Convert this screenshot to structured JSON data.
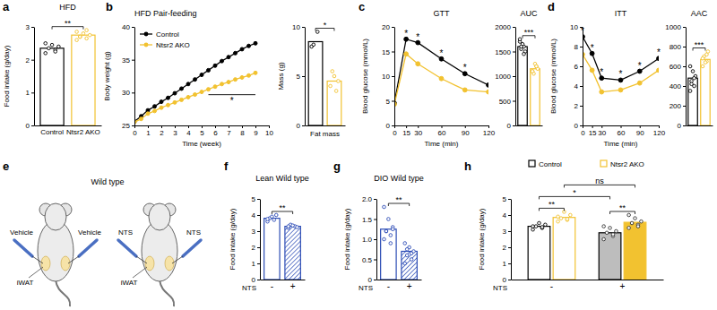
{
  "chart_data": [
    {
      "type": "bar",
      "label": "a",
      "title": "HFD",
      "categories": [
        "Control",
        "Ntsr2 AKO"
      ],
      "values": [
        2.35,
        2.75
      ],
      "points": [
        [
          2.2,
          2.3,
          2.35,
          2.4,
          2.45,
          2.5,
          2.25
        ],
        [
          2.6,
          2.65,
          2.7,
          2.75,
          2.8,
          2.85,
          2.9,
          2.7
        ]
      ],
      "colors": [
        "#000000",
        "#f2c230"
      ],
      "y_label": "Food intake (g/day)",
      "ylim": [
        0,
        3
      ],
      "yticks": [
        0,
        1,
        2,
        3
      ],
      "annotations": [
        {
          "text": "**",
          "bars": [
            0,
            1
          ]
        }
      ]
    },
    {
      "type": "line",
      "label": "b",
      "title": "HFD Pair-feeding",
      "x": [
        0,
        0.5,
        1,
        1.5,
        2,
        2.5,
        3,
        3.5,
        4,
        4.5,
        5,
        5.5,
        6,
        6.5,
        7,
        7.5,
        8,
        8.5,
        9
      ],
      "series": [
        {
          "name": "Control",
          "color": "#000000",
          "marker": "circle",
          "values": [
            25.6,
            26.4,
            27.3,
            27.9,
            28.6,
            29.2,
            29.9,
            30.6,
            31.3,
            32.0,
            32.7,
            33.4,
            34.1,
            34.8,
            35.4,
            36.0,
            36.6,
            37.1,
            37.5
          ]
        },
        {
          "name": "Ntsr2 AKO",
          "color": "#f2c230",
          "marker": "circle",
          "values": [
            25.5,
            26.0,
            26.8,
            27.2,
            27.7,
            28.1,
            28.5,
            28.9,
            29.3,
            29.7,
            30.1,
            30.5,
            30.9,
            31.3,
            31.6,
            32.0,
            32.3,
            32.6,
            33.0
          ]
        }
      ],
      "x_label": "Time (week)",
      "y_label": "Body weight (g)",
      "xlim": [
        0,
        10
      ],
      "xticks": [
        0,
        1,
        2,
        3,
        4,
        5,
        6,
        7,
        8,
        9,
        10
      ],
      "ylim": [
        25,
        40
      ],
      "yticks": [
        25,
        30,
        35,
        40
      ],
      "legend": "upper left",
      "annotations": [
        {
          "text": "*",
          "x": [
            5.5,
            9
          ]
        }
      ]
    },
    {
      "type": "bar",
      "x_label": "Fat mass",
      "categories": [
        null,
        null
      ],
      "values": [
        8.5,
        4.5
      ],
      "points": [
        [
          8.0,
          9.5,
          8.2
        ],
        [
          4.0,
          3.5,
          5.5,
          4.5,
          5.0
        ]
      ],
      "colors": [
        "#000000",
        "#f2c230"
      ],
      "y_label": "Mass (g)",
      "ylim": [
        0,
        10
      ],
      "yticks": [
        0,
        5,
        10
      ],
      "annotations": [
        {
          "text": "*",
          "bars": [
            0,
            1
          ]
        }
      ]
    },
    {
      "type": "line",
      "label": "c",
      "title": "GTT",
      "x": [
        0,
        15,
        30,
        60,
        90,
        120
      ],
      "series": [
        {
          "name": "Control",
          "color": "#000000",
          "marker": "circle",
          "values": [
            4.5,
            17.5,
            16.8,
            13.5,
            10.5,
            8.2
          ]
        },
        {
          "name": "Ntsr2 AKO",
          "color": "#f2c230",
          "marker": "circle",
          "values": [
            4.3,
            14.5,
            12.5,
            9.5,
            7.2,
            6.8
          ]
        }
      ],
      "x_label": "Time (min)",
      "y_label": "Blood glucose (mmol/L)",
      "xlim": [
        0,
        120
      ],
      "xticks": [
        0,
        15,
        30,
        60,
        90,
        120
      ],
      "ylim": [
        0,
        20
      ],
      "yticks": [
        0,
        5,
        10,
        15,
        20
      ],
      "annotations": [
        {
          "text": "*",
          "x": 15
        },
        {
          "text": "*",
          "x": 30
        },
        {
          "text": "*",
          "x": 60
        },
        {
          "text": "*",
          "x": 90
        }
      ]
    },
    {
      "type": "bar",
      "title": "AUC",
      "categories": [
        null,
        null
      ],
      "values": [
        1600,
        1150
      ],
      "points": [
        [
          1700,
          1600,
          1550,
          1500,
          1650,
          1750,
          1450,
          1600
        ],
        [
          1100,
          1200,
          1050,
          1150,
          1250,
          1100,
          1200
        ]
      ],
      "colors": [
        "#000000",
        "#f2c230"
      ],
      "ylim": [
        0,
        2000
      ],
      "yticks": [
        0,
        500,
        1000,
        1500,
        2000
      ],
      "annotations": [
        {
          "text": "***",
          "bars": [
            0,
            1
          ]
        }
      ]
    },
    {
      "type": "line",
      "label": "d",
      "title": "ITT",
      "x": [
        0,
        15,
        30,
        60,
        90,
        120
      ],
      "series": [
        {
          "name": "Control",
          "color": "#000000",
          "marker": "circle",
          "values": [
            9.0,
            7.3,
            4.8,
            4.6,
            5.5,
            6.8
          ]
        },
        {
          "name": "Ntsr2 AKO",
          "color": "#f2c230",
          "marker": "circle",
          "values": [
            7.2,
            5.6,
            3.4,
            3.6,
            4.3,
            5.6
          ]
        }
      ],
      "x_label": "Time (min)",
      "y_label": "Blood glucose (mmol/L)",
      "xlim": [
        0,
        120
      ],
      "xticks": [
        0,
        15,
        30,
        60,
        90,
        120
      ],
      "ylim": [
        0,
        10
      ],
      "yticks": [
        0,
        2,
        4,
        6,
        8,
        10
      ],
      "annotations": [
        {
          "text": "*",
          "x": 0
        },
        {
          "text": "*",
          "x": 15
        },
        {
          "text": "*",
          "x": 30
        },
        {
          "text": "*",
          "x": 60
        },
        {
          "text": "*",
          "x": 90
        },
        {
          "text": "*",
          "x": 120
        }
      ]
    },
    {
      "type": "bar",
      "title": "AAC",
      "categories": [
        null,
        null
      ],
      "values": [
        480,
        670
      ],
      "points": [
        [
          350,
          400,
          450,
          500,
          550,
          600,
          480,
          420
        ],
        [
          600,
          650,
          700,
          750,
          640,
          680,
          720
        ]
      ],
      "colors": [
        "#000000",
        "#f2c230"
      ],
      "ylim": [
        0,
        1000
      ],
      "yticks": [
        0,
        200,
        400,
        600,
        800,
        1000
      ],
      "annotations": [
        {
          "text": "***",
          "bars": [
            0,
            1
          ]
        }
      ]
    },
    {
      "type": "bar",
      "label": "f",
      "title": "Lean Wild type",
      "categories": [
        "-",
        "+"
      ],
      "x_label": "NTS",
      "values": [
        3.8,
        3.3
      ],
      "points": [
        [
          3.6,
          3.7,
          3.8,
          4.0,
          3.9,
          3.75
        ],
        [
          3.2,
          3.3,
          3.4,
          3.25,
          3.35,
          3.3
        ]
      ],
      "colors": [
        "#2b4bb5",
        "#2b4bb5"
      ],
      "y_label": "Food intake (g/day)",
      "ylim": [
        0,
        5
      ],
      "yticks": [
        0,
        1,
        2,
        3,
        4,
        5
      ],
      "annotations": [
        {
          "text": "**",
          "bars": [
            0,
            1
          ]
        }
      ]
    },
    {
      "type": "bar",
      "label": "g",
      "title": "DIO Wild type",
      "categories": [
        "-",
        "+"
      ],
      "x_label": "NTS",
      "values": [
        1.25,
        0.7
      ],
      "points": [
        [
          1.0,
          1.1,
          1.2,
          1.3,
          1.5,
          1.8,
          0.9,
          1.2,
          1.25
        ],
        [
          0.4,
          0.5,
          0.6,
          0.7,
          0.8,
          0.9,
          0.65,
          0.75
        ]
      ],
      "colors": [
        "#2b4bb5",
        "#2b4bb5"
      ],
      "y_label": "Food intake (g/day)",
      "ylim": [
        0,
        2
      ],
      "yticks": [
        0,
        0.5,
        {
          "value": 1,
          "label": "1.0"
        },
        1.5,
        {
          "value": 2,
          "label": "2.0"
        }
      ],
      "annotations": [
        {
          "text": "**",
          "bars": [
            0,
            1
          ]
        }
      ]
    },
    {
      "type": "bar",
      "label": "h",
      "categories": [
        "-",
        "+"
      ],
      "x_label": "NTS",
      "series": [
        {
          "name": "Control",
          "color": "#000000",
          "values": [
            3.3,
            2.9
          ],
          "points": [
            [
              3.1,
              3.2,
              3.3,
              3.4,
              3.5,
              3.3,
              3.25
            ],
            [
              2.5,
              2.7,
              2.9,
              3.0,
              3.2,
              3.3,
              2.8
            ]
          ]
        },
        {
          "name": "Ntsr2 AKO",
          "color": "#f2c230",
          "values": [
            3.85,
            3.55
          ],
          "points": [
            [
              3.6,
              3.7,
              3.8,
              4.0,
              4.2,
              3.9,
              3.75
            ],
            [
              3.2,
              3.4,
              3.5,
              3.6,
              3.8,
              4.0,
              3.3
            ]
          ]
        }
      ],
      "y_label": "Food intake (g/day)",
      "ylim": [
        0,
        5
      ],
      "yticks": [
        0,
        1,
        2,
        3,
        4,
        5
      ],
      "legend": "top",
      "annotations": [
        {
          "text": "**",
          "bars": [
            0,
            1
          ]
        },
        {
          "text": "**",
          "bars": [
            2,
            3
          ]
        },
        {
          "text": "*",
          "bars": [
            0,
            2
          ]
        },
        {
          "text": "ns",
          "bars": [
            1,
            3
          ]
        }
      ]
    }
  ],
  "diagram": {
    "label": "e",
    "title": "Wild type",
    "mice": [
      {
        "left": "Vehicle",
        "right": "Vehicle",
        "site": "iWAT"
      },
      {
        "left": "NTS",
        "right": "NTS",
        "site": "iWAT"
      }
    ]
  }
}
